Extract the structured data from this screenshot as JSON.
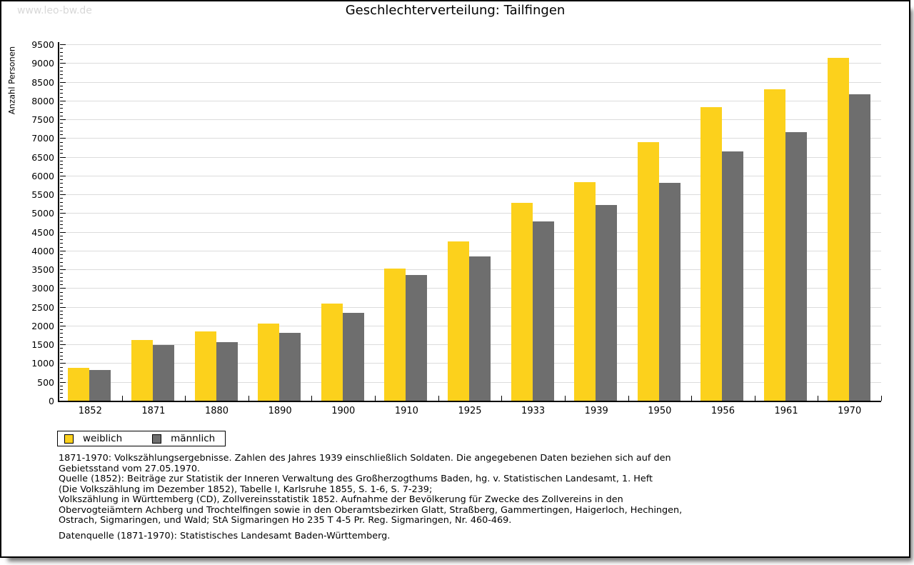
{
  "watermark": "www.leo-bw.de",
  "title": "Geschlechterverteilung: Tailfingen",
  "chart_data": {
    "type": "bar",
    "title": "Geschlechterverteilung: Tailfingen",
    "xlabel": "",
    "ylabel": "Anzahl Personen",
    "categories": [
      "1852",
      "1871",
      "1880",
      "1890",
      "1900",
      "1910",
      "1925",
      "1933",
      "1939",
      "1950",
      "1956",
      "1961",
      "1970"
    ],
    "series": [
      {
        "name": "weiblich",
        "color": "#FCD11C",
        "values": [
          870,
          1610,
          1850,
          2060,
          2590,
          3530,
          4240,
          5270,
          5830,
          6900,
          7830,
          8310,
          9140
        ]
      },
      {
        "name": "männlich",
        "color": "#6E6E6E",
        "values": [
          820,
          1490,
          1560,
          1800,
          2350,
          3350,
          3840,
          4780,
          5220,
          5800,
          6650,
          7150,
          8160
        ]
      }
    ],
    "ylim": [
      0,
      9500
    ],
    "ytick_step": 500,
    "y_minor_step": 100,
    "grid": "horizontal",
    "gridline_color": "#dcdcdc",
    "legend_position": "bottom-left"
  },
  "legend": {
    "items": [
      {
        "label": "weiblich",
        "color": "#FCD11C"
      },
      {
        "label": "männlich",
        "color": "#6E6E6E"
      }
    ]
  },
  "footnotes": {
    "lines": [
      "1871-1970: Volkszählungsergebnisse. Zahlen des Jahres 1939 einschließlich Soldaten. Die angegebenen Daten beziehen sich auf den",
      "Gebietsstand vom 27.05.1970.",
      "Quelle (1852): Beiträge zur Statistik der Inneren Verwaltung des Großherzogthums Baden, hg. v. Statistischen Landesamt, 1. Heft",
      "(Die Volkszählung im Dezember 1852), Tabelle I, Karlsruhe 1855, S. 1-6, S. 7-239;",
      "Volkszählung in Württemberg (CD), Zollvereinsstatistik 1852. Aufnahme der Bevölkerung für Zwecke des Zollvereins in den",
      "Obervogteiämtern Achberg und Trochtelfingen sowie in den Oberamtsbezirken Glatt, Straßberg, Gammertingen, Haigerloch, Hechingen,",
      "Ostrach, Sigmaringen, und Wald; StA Sigmaringen Ho 235 T 4-5 Pr. Reg. Sigmaringen, Nr. 460-469."
    ]
  },
  "datasource": "Datenquelle (1871-1970): Statistisches Landesamt Baden-Württemberg."
}
